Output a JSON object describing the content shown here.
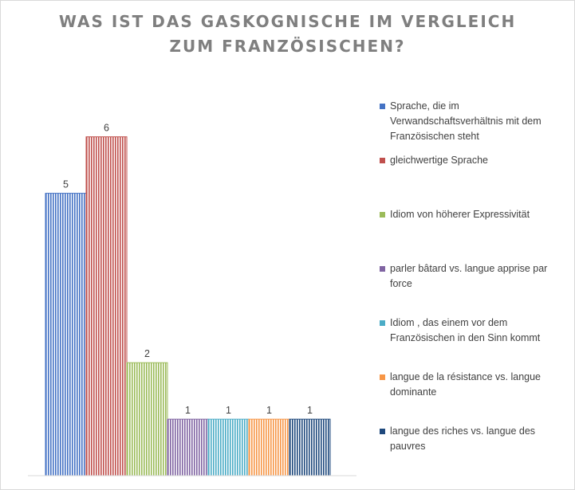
{
  "chart_data": {
    "type": "bar",
    "title_lines": [
      "WAS IST DAS GASKOGNISCHE  IM VERGLEICH",
      "ZUM FRANZÖSISCHEN?"
    ],
    "ylim": [
      0,
      6.8
    ],
    "series": [
      {
        "name": "Sprache, die im Verwandschaftsverhältnis mit dem Französischen steht",
        "value": 5,
        "label": "5",
        "color": "#4472c4"
      },
      {
        "name": "gleichwertige Sprache",
        "value": 6,
        "label": "6",
        "color": "#c0504d"
      },
      {
        "name": "Idiom von höherer Expressivität",
        "value": 2,
        "label": "2",
        "color": "#9bbb59"
      },
      {
        "name": "parler bâtard vs. langue apprise par force",
        "value": 1,
        "label": "1",
        "color": "#8064a2"
      },
      {
        "name": "Idiom , das einem vor dem Französischen in den Sinn kommt",
        "value": 1,
        "label": "1",
        "color": "#4bacc6"
      },
      {
        "name": "langue de la résistance vs. langue dominante",
        "value": 1,
        "label": "1",
        "color": "#f79646"
      },
      {
        "name": "langue des riches vs. langue des pauvres",
        "value": 1,
        "label": "1",
        "color": "#1f497d"
      }
    ],
    "legend_position": "right",
    "grid": false
  }
}
